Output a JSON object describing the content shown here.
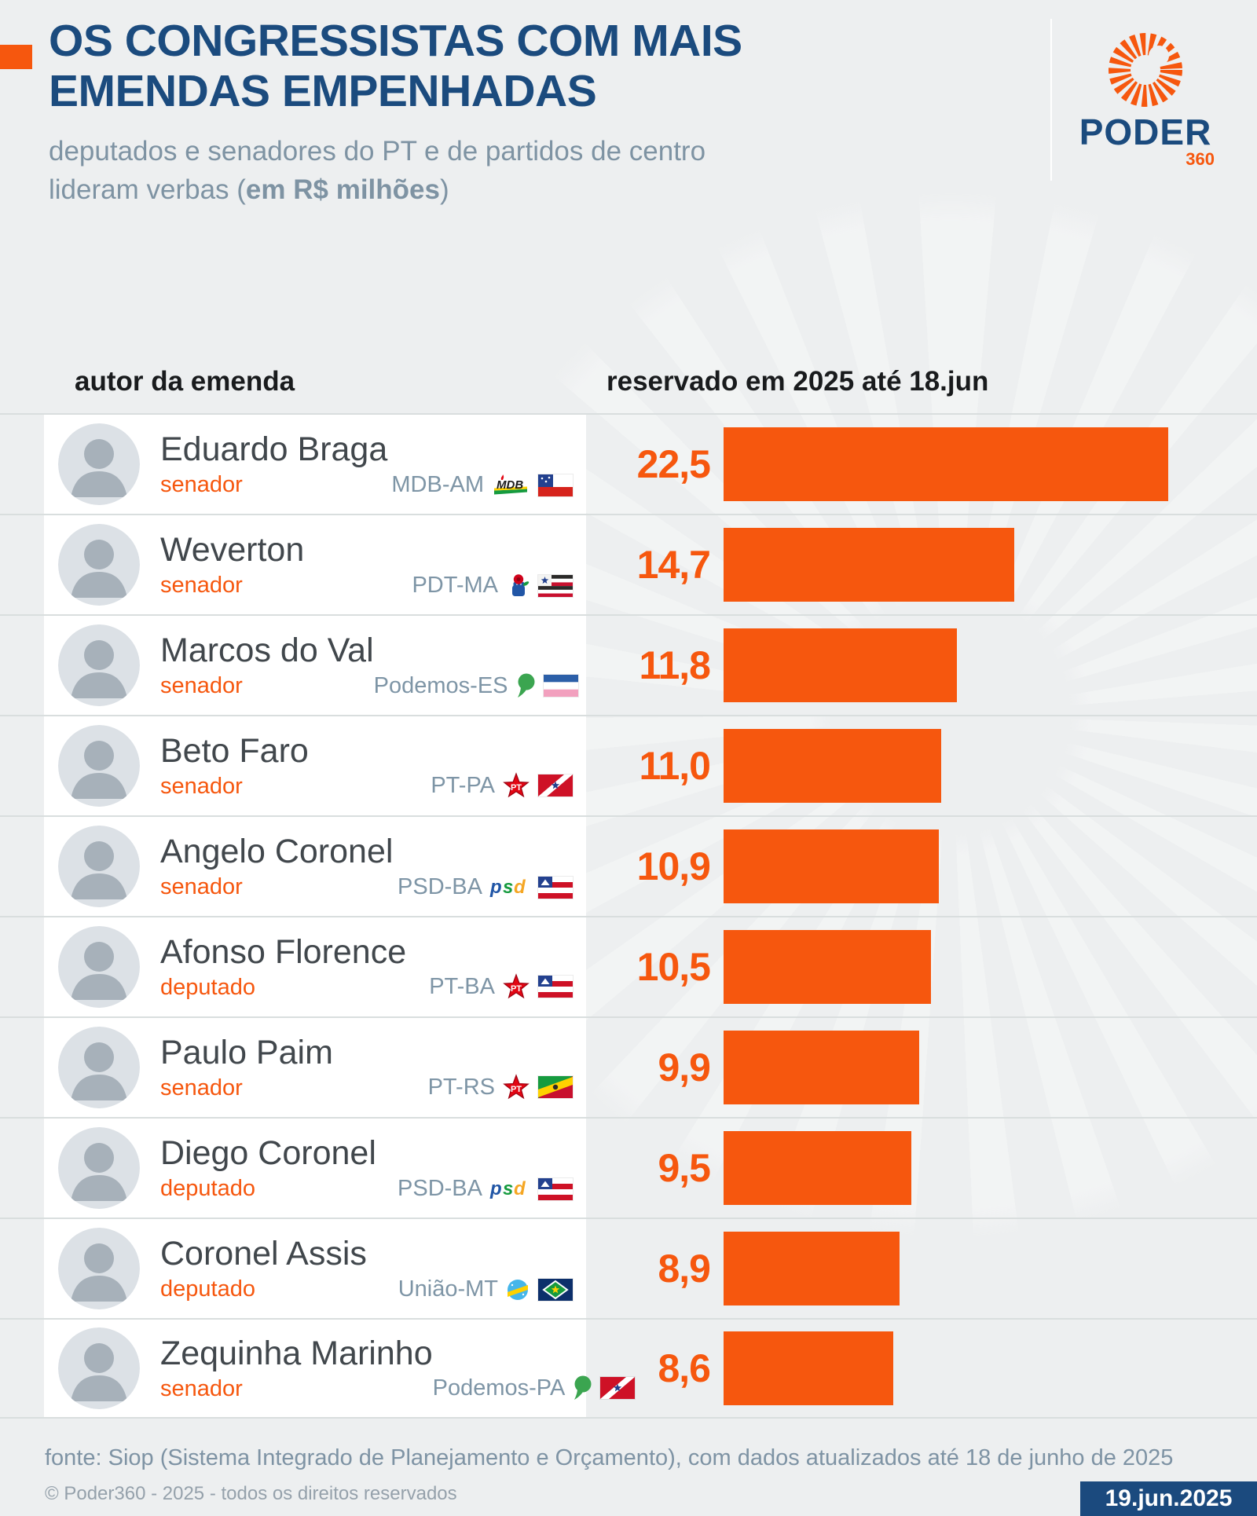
{
  "header": {
    "title_line1": "OS CONGRESSISTAS COM MAIS",
    "title_line2": "EMENDAS EMPENHADAS",
    "subtitle_line1": "deputados e senadores do PT e de partidos de centro",
    "subtitle_line2_pre": "lideram verbas (",
    "subtitle_line2_bold": "em R$ milhões",
    "subtitle_line2_post": ")",
    "logo": {
      "name": "PODER",
      "sub": "360"
    }
  },
  "table": {
    "col_author": "autor da emenda",
    "col_value": "reservado em 2025 até 18.jun"
  },
  "chart_data": {
    "type": "bar",
    "orientation": "horizontal",
    "title": "OS CONGRESSISTAS COM MAIS EMENDAS EMPENHADAS",
    "subtitle": "deputados e senadores do PT e de partidos de centro lideram verbas (em R$ milhões)",
    "unit": "R$ milhões",
    "value_axis_label": "reservado em 2025 até 18.jun",
    "category_axis_label": "autor da emenda",
    "max": 22.5,
    "grid": false,
    "legend": false,
    "bar_color": "#F6570E",
    "categories": [
      "Eduardo Braga",
      "Weverton",
      "Marcos do Val",
      "Beto Faro",
      "Angelo Coronel",
      "Afonso Florence",
      "Paulo Paim",
      "Diego Coronel",
      "Coronel Assis",
      "Zequinha Marinho"
    ],
    "values": [
      22.5,
      14.7,
      11.8,
      11.0,
      10.9,
      10.5,
      9.9,
      9.5,
      8.9,
      8.6
    ],
    "rows": [
      {
        "name": "Eduardo Braga",
        "role": "senador",
        "party": "MDB-AM",
        "party_id": "mdb",
        "state": "AM",
        "value": 22.5,
        "value_label": "22,5"
      },
      {
        "name": "Weverton",
        "role": "senador",
        "party": "PDT-MA",
        "party_id": "pdt",
        "state": "MA",
        "value": 14.7,
        "value_label": "14,7"
      },
      {
        "name": "Marcos do Val",
        "role": "senador",
        "party": "Podemos-ES",
        "party_id": "podemos",
        "state": "ES",
        "value": 11.8,
        "value_label": "11,8"
      },
      {
        "name": "Beto Faro",
        "role": "senador",
        "party": "PT-PA",
        "party_id": "pt",
        "state": "PA",
        "value": 11.0,
        "value_label": "11,0"
      },
      {
        "name": "Angelo Coronel",
        "role": "senador",
        "party": "PSD-BA",
        "party_id": "psd",
        "state": "BA",
        "value": 10.9,
        "value_label": "10,9"
      },
      {
        "name": "Afonso Florence",
        "role": "deputado",
        "party": "PT-BA",
        "party_id": "pt",
        "state": "BA",
        "value": 10.5,
        "value_label": "10,5"
      },
      {
        "name": "Paulo Paim",
        "role": "senador",
        "party": "PT-RS",
        "party_id": "pt",
        "state": "RS",
        "value": 9.9,
        "value_label": "9,9"
      },
      {
        "name": "Diego Coronel",
        "role": "deputado",
        "party": "PSD-BA",
        "party_id": "psd",
        "state": "BA",
        "value": 9.5,
        "value_label": "9,5"
      },
      {
        "name": "Coronel Assis",
        "role": "deputado",
        "party": "União-MT",
        "party_id": "uniao",
        "state": "MT",
        "value": 8.9,
        "value_label": "8,9"
      },
      {
        "name": "Zequinha Marinho",
        "role": "senador",
        "party": "Podemos-PA",
        "party_id": "podemos",
        "state": "PA",
        "value": 8.6,
        "value_label": "8,6"
      }
    ]
  },
  "footer": {
    "source": "fonte: Siop (Sistema Integrado de Planejamento e Orçamento), com dados atualizados até 18 de junho de 2025",
    "copyright": "© Poder360 - 2025 - todos os direitos reservados",
    "date": "19.jun.2025"
  },
  "colors": {
    "accent_orange": "#F6570E",
    "title_blue": "#1B4B7E",
    "subtitle_gray": "#7E93A3",
    "party_gray": "#7E95A6",
    "name_gray": "#41474C",
    "background": "#EDEFF0",
    "separator": "#D9DEDE",
    "date_box_blue": "#1B4A7E"
  }
}
